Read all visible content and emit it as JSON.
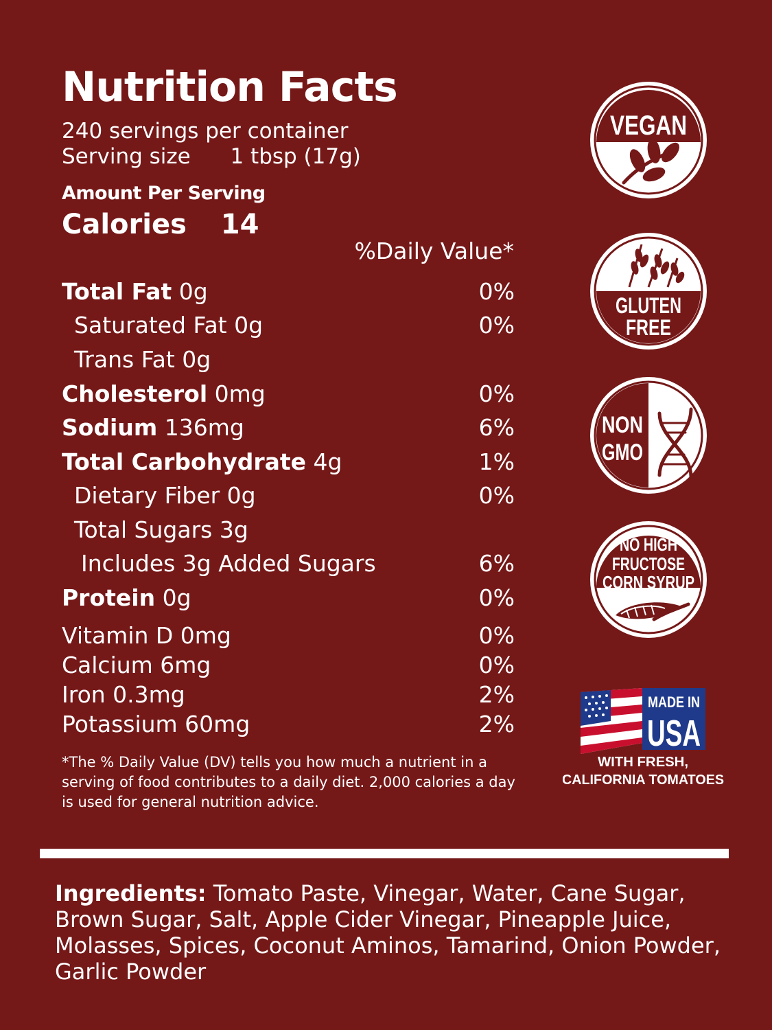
{
  "nutrition": {
    "title": "Nutrition Facts",
    "servings_per_container": "240 servings per container",
    "serving_size_label": "Serving size",
    "serving_size_value": "1 tbsp (17g)",
    "amount_per_serving": "Amount Per Serving",
    "calories_label": "Calories",
    "calories_value": "14",
    "daily_value_header": "%Daily Value*",
    "rows": [
      {
        "label": "Total Fat",
        "amount": "0g",
        "dv": "0%"
      },
      {
        "label": "Saturated Fat 0g",
        "dv": "0%"
      },
      {
        "label": "Trans Fat 0g",
        "dv": ""
      },
      {
        "label": "Cholesterol",
        "amount": "0mg",
        "dv": "0%"
      },
      {
        "label": "Sodium",
        "amount": "136mg",
        "dv": "6%"
      },
      {
        "label": "Total Carbohydrate",
        "amount": "4g",
        "dv": "1%"
      },
      {
        "label": "Dietary Fiber 0g",
        "dv": "0%"
      },
      {
        "label": "Total Sugars 3g",
        "dv": ""
      },
      {
        "label": "Includes 3g Added Sugars",
        "dv": "6%"
      },
      {
        "label": "Protein",
        "amount": "0g",
        "dv": "0%"
      }
    ],
    "vitamins": [
      {
        "label": "Vitamin D 0mg",
        "dv": "0%"
      },
      {
        "label": "Calcium 6mg",
        "dv": "0%"
      },
      {
        "label": "Iron 0.3mg",
        "dv": "2%"
      },
      {
        "label": "Potassium 60mg",
        "dv": "2%"
      }
    ],
    "footnote": "*The % Daily Value (DV) tells you how much a nutrient in a serving of food contributes to a daily diet. 2,000 calories a day is used for general nutrition advice."
  },
  "ingredients": {
    "label": "Ingredients:",
    "text": "Tomato Paste, Vinegar, Water, Cane Sugar, Brown Sugar, Salt, Apple Cider Vinegar, Pineapple Juice, Molasses, Spices, Coconut Aminos, Tamarind, Onion Powder, Garlic Powder"
  },
  "badges": {
    "vegan": {
      "text": "VEGAN",
      "icon": "leaf-branch-icon"
    },
    "gluten_free": {
      "line1": "GLUTEN",
      "line2": "FREE",
      "icon": "wheat-icon"
    },
    "non_gmo": {
      "line1": "NON",
      "line2": "GMO",
      "icon": "dna-icon"
    },
    "no_hfcs": {
      "line1": "NO HIGH",
      "line2": "FRUCTOSE",
      "line3": "CORN SYRUP",
      "icon": "corn-icon"
    },
    "made_in_usa": {
      "line1": "MADE IN",
      "line2": "USA",
      "caption1": "WITH FRESH,",
      "caption2": "CALIFORNIA TOMATOES",
      "icon": "us-flag-icon"
    }
  },
  "colors": {
    "background": "#751818",
    "foreground": "#ffffff",
    "flag_red": "#c8102e",
    "flag_blue": "#1f3a8a"
  }
}
